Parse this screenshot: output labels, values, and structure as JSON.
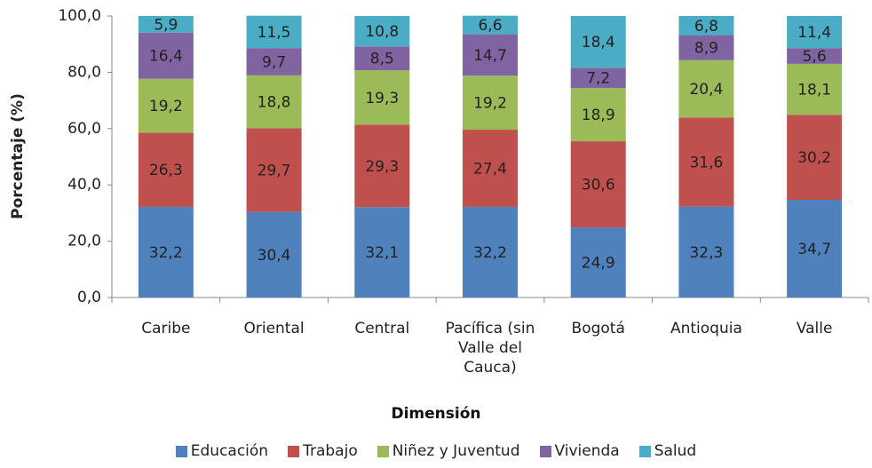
{
  "chart_data": {
    "type": "stacked_bar",
    "x_label": "Dimensión",
    "y_label": "Porcentaje (%)",
    "categories": [
      "Caribe",
      "Oriental",
      "Central",
      "Pacífica (sin Valle del Cauca)",
      "Bogotá",
      "Antioquia",
      "Valle"
    ],
    "series": [
      {
        "name": "Educación",
        "color": "#4f81bd",
        "values": [
          32.2,
          30.4,
          32.1,
          32.2,
          24.9,
          32.3,
          34.7
        ],
        "value_labels": [
          "32,2",
          "30,4",
          "32,1",
          "32,2",
          "24,9",
          "32,3",
          "34,7"
        ]
      },
      {
        "name": "Trabajo",
        "color": "#c0504d",
        "values": [
          26.3,
          29.7,
          29.3,
          27.4,
          30.6,
          31.6,
          30.2
        ],
        "value_labels": [
          "26,3",
          "29,7",
          "29,3",
          "27,4",
          "30,6",
          "31,6",
          "30,2"
        ]
      },
      {
        "name": "Niñez y Juventud",
        "color": "#9bbb59",
        "values": [
          19.2,
          18.8,
          19.3,
          19.2,
          18.9,
          20.4,
          18.1
        ],
        "value_labels": [
          "19,2",
          "18,8",
          "19,3",
          "19,2",
          "18,9",
          "20,4",
          "18,1"
        ]
      },
      {
        "name": "Vivienda",
        "color": "#8064a2",
        "values": [
          16.4,
          9.7,
          8.5,
          14.7,
          7.2,
          8.9,
          5.6
        ],
        "value_labels": [
          "16,4",
          "9,7",
          "8,5",
          "14,7",
          "7,2",
          "8,9",
          "5,6"
        ]
      },
      {
        "name": "Salud",
        "color": "#4bacc6",
        "values": [
          5.9,
          11.5,
          10.8,
          6.6,
          18.4,
          6.8,
          11.4
        ],
        "value_labels": [
          "5,9",
          "11,5",
          "10,8",
          "6,6",
          "18,4",
          "6,8",
          "11,4"
        ]
      }
    ],
    "ylim": [
      0,
      100
    ],
    "yticks": [
      {
        "value": 0,
        "label": "0,0"
      },
      {
        "value": 20,
        "label": "20,0"
      },
      {
        "value": 40,
        "label": "40,0"
      },
      {
        "value": 60,
        "label": "60,0"
      },
      {
        "value": 80,
        "label": "80,0"
      },
      {
        "value": 100,
        "label": "100,0"
      }
    ],
    "legend": "bottom"
  }
}
